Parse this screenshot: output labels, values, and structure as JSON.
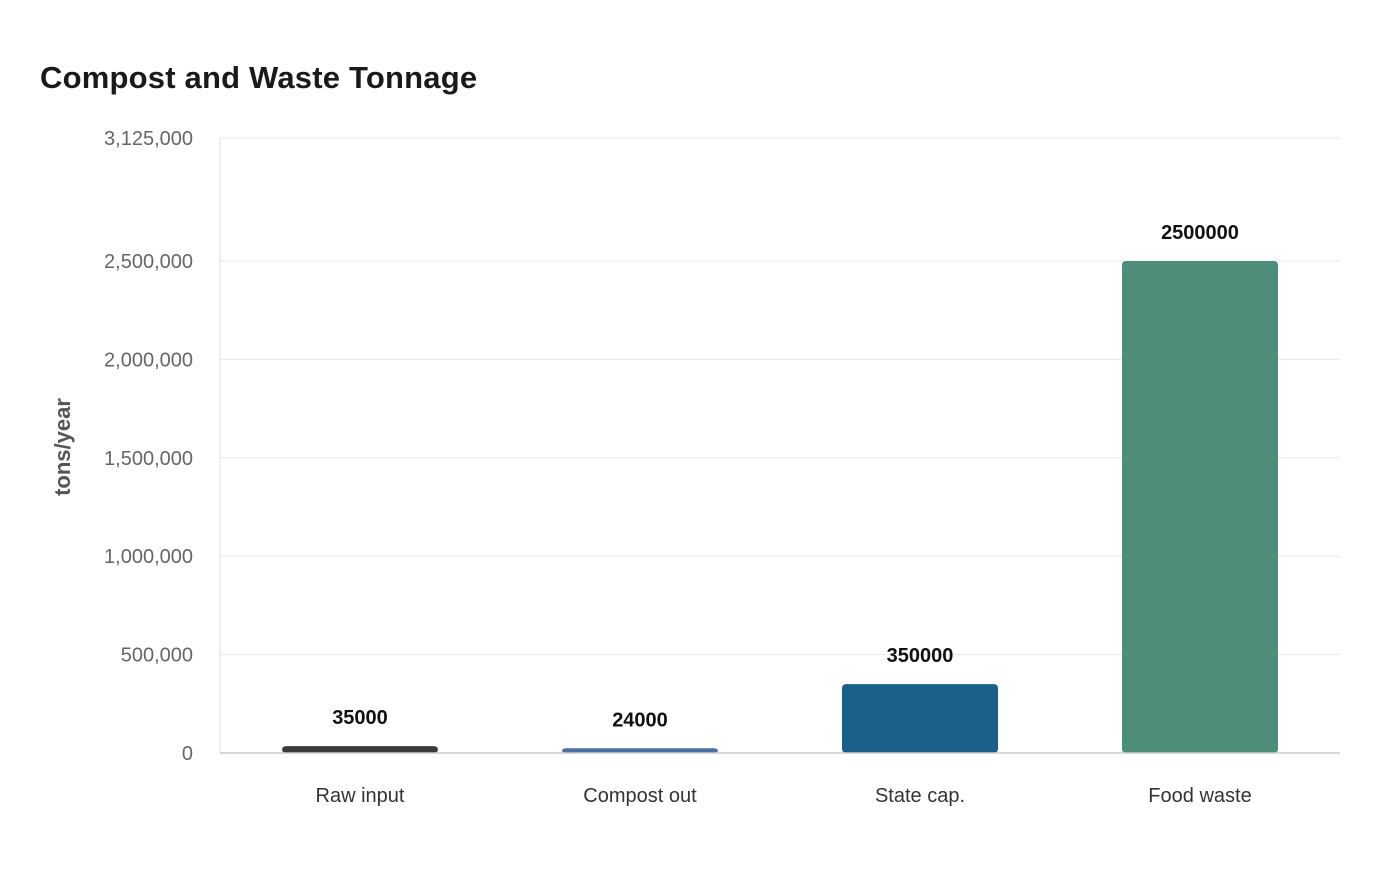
{
  "chart_data": {
    "type": "bar",
    "title": "Compost and Waste Tonnage",
    "xlabel": "",
    "ylabel": "tons/year",
    "categories": [
      "Raw input",
      "Compost out",
      "State cap.",
      "Food waste"
    ],
    "values": [
      35000,
      24000,
      350000,
      2500000
    ],
    "data_labels": [
      "35000",
      "24000",
      "350000",
      "2500000"
    ],
    "ylim": [
      0,
      3125000
    ],
    "y_ticks": [
      0,
      500000,
      1000000,
      1500000,
      2000000,
      2500000,
      3125000
    ],
    "y_tick_labels": [
      "0",
      "500,000",
      "1,000,000",
      "1,500,000",
      "2,000,000",
      "2,500,000",
      "3,125,000"
    ],
    "colors": [
      "#3a3a3a",
      "#4a6fa5",
      "#1a6088",
      "#4f8d7b"
    ],
    "grid": true,
    "legend": "none"
  }
}
